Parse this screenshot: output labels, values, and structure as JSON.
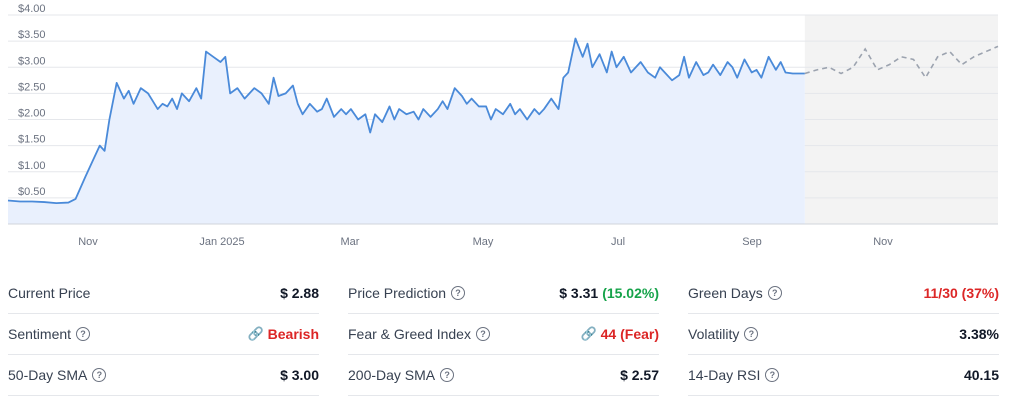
{
  "chart_data": {
    "type": "line",
    "ylim": [
      0,
      4
    ],
    "y_ticks": [
      "$0.50",
      "$1.00",
      "$1.50",
      "$2.00",
      "$2.50",
      "$3.00",
      "$3.50",
      "$4.00"
    ],
    "y_tick_values": [
      0.5,
      1.0,
      1.5,
      2.0,
      2.5,
      3.0,
      3.5,
      4.0
    ],
    "x_ticks": [
      "Nov",
      "Jan 2025",
      "Mar",
      "May",
      "Jul",
      "Sep",
      "Nov"
    ],
    "grid": true,
    "series": [
      {
        "style": "solid-area",
        "color": "#4a8ad9",
        "x": [
          0,
          5,
          10,
          15,
          20,
          25,
          28,
          32,
          35,
          38,
          40,
          42,
          45,
          48,
          50,
          52,
          55,
          58,
          60,
          62,
          64,
          66,
          68,
          70,
          72,
          75,
          78,
          80,
          82,
          85,
          88,
          90,
          92,
          95,
          98,
          100,
          102,
          105,
          108,
          110,
          112,
          115,
          118,
          120,
          122,
          125,
          128,
          130,
          132,
          135,
          138,
          140,
          142,
          145,
          148,
          150,
          152,
          155,
          158,
          160,
          162,
          165,
          168,
          170,
          172,
          175,
          178,
          180,
          182,
          185,
          188,
          190,
          192,
          195,
          198,
          200,
          202,
          205,
          208,
          210,
          212,
          215,
          218,
          220,
          222,
          225,
          228,
          230,
          232,
          235,
          238,
          240,
          242,
          245,
          248,
          250,
          252,
          255,
          258,
          260,
          262,
          265,
          268,
          270,
          272,
          275,
          278,
          280,
          282,
          285,
          288,
          290,
          292,
          295,
          298,
          300,
          302,
          305,
          308,
          310,
          312,
          315,
          318,
          320,
          322,
          325,
          330
        ],
        "values": [
          0.45,
          0.43,
          0.43,
          0.42,
          0.4,
          0.41,
          0.48,
          0.9,
          1.2,
          1.5,
          1.4,
          2.0,
          2.7,
          2.4,
          2.55,
          2.3,
          2.6,
          2.5,
          2.35,
          2.2,
          2.3,
          2.25,
          2.4,
          2.2,
          2.5,
          2.35,
          2.6,
          2.4,
          3.3,
          3.2,
          3.1,
          3.2,
          2.5,
          2.6,
          2.4,
          2.5,
          2.6,
          2.5,
          2.3,
          2.8,
          2.45,
          2.5,
          2.65,
          2.3,
          2.1,
          2.3,
          2.15,
          2.2,
          2.4,
          2.05,
          2.2,
          2.1,
          2.2,
          2.0,
          2.1,
          1.75,
          2.1,
          1.95,
          2.25,
          2.0,
          2.2,
          2.1,
          2.15,
          2.0,
          2.2,
          2.05,
          2.2,
          2.35,
          2.2,
          2.6,
          2.45,
          2.3,
          2.4,
          2.25,
          2.25,
          2.0,
          2.2,
          2.1,
          2.3,
          2.1,
          2.2,
          2.0,
          2.2,
          2.1,
          2.2,
          2.4,
          2.2,
          2.8,
          2.9,
          3.55,
          3.2,
          3.45,
          3.0,
          3.25,
          2.9,
          3.3,
          3.0,
          3.2,
          2.9,
          3.0,
          3.1,
          2.9,
          2.8,
          3.0,
          2.9,
          2.75,
          2.85,
          3.2,
          2.8,
          3.1,
          2.85,
          2.9,
          3.05,
          2.85,
          3.1,
          3.0,
          2.8,
          3.15,
          2.9,
          2.95,
          2.8,
          3.2,
          2.95,
          3.1,
          2.9,
          2.88,
          2.88
        ]
      },
      {
        "style": "dashed-forecast",
        "color": "#9ca3af",
        "x": [
          330,
          335,
          340,
          345,
          350,
          355,
          360,
          365,
          370,
          375,
          380,
          385,
          390,
          395,
          400,
          405,
          410
        ],
        "values": [
          2.88,
          2.95,
          3.0,
          2.88,
          3.0,
          3.35,
          2.95,
          3.05,
          3.2,
          3.15,
          2.8,
          3.2,
          3.3,
          3.05,
          3.2,
          3.3,
          3.4
        ]
      }
    ]
  },
  "colors": {
    "line": "#4a8ad9",
    "area": "#e9f0fd",
    "forecast_line": "#9ca3af",
    "forecast_area": "#f3f3f3",
    "red": "#dc2626",
    "green": "#16a34a"
  },
  "stats": {
    "col1": [
      {
        "label": "Current Price",
        "value": "$ 2.88",
        "help": true
      },
      {
        "label": "Sentiment",
        "value": "Bearish",
        "help": true,
        "link_icon": true,
        "value_color": "red"
      },
      {
        "label": "50-Day SMA",
        "value": "$ 3.00",
        "help": true
      }
    ],
    "col2": [
      {
        "label": "Price Prediction",
        "value": "$ 3.31",
        "value_extra": "(15.02%)",
        "help": true
      },
      {
        "label": "Fear & Greed Index",
        "value": "44 (Fear)",
        "help": true,
        "link_icon": true
      },
      {
        "label": "200-Day SMA",
        "value": "$ 2.57",
        "help": true
      }
    ],
    "col3": [
      {
        "label": "Green Days",
        "value": "11/30 (37%)",
        "help": true
      },
      {
        "label": "Volatility",
        "value": "3.38%",
        "help": true
      },
      {
        "label": "14-Day RSI",
        "value": "40.15",
        "help": true
      }
    ]
  },
  "icons": {
    "help": "question-circle-icon",
    "link": "link-icon"
  }
}
